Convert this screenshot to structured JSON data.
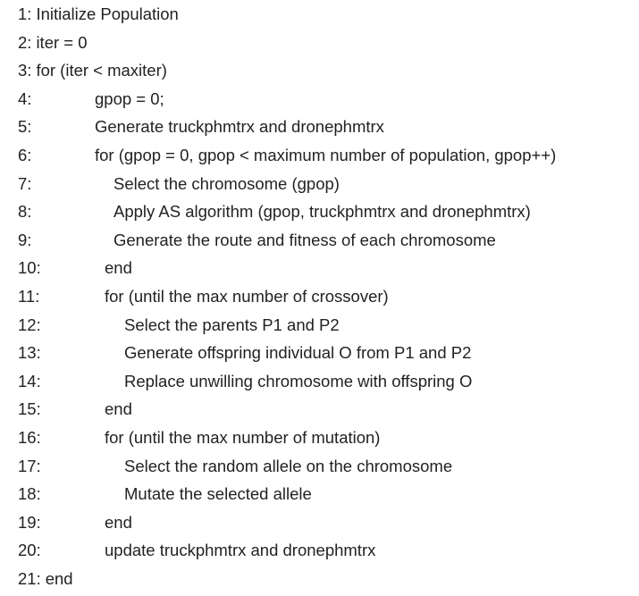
{
  "algorithm": {
    "lines": [
      {
        "num": "1:",
        "text": "Initialize Population",
        "inline": true
      },
      {
        "num": "2:",
        "text": "iter = 0",
        "inline": true
      },
      {
        "num": "3:",
        "text": "for (iter < maxiter)",
        "inline": true
      },
      {
        "num": "4:",
        "text": "gpop = 0;",
        "indent": 1
      },
      {
        "num": "5:",
        "text": "Generate truckphmtrx and dronephmtrx",
        "indent": 1
      },
      {
        "num": "6:",
        "text": "for (gpop = 0, gpop < maximum number of population, gpop++)",
        "indent": 1
      },
      {
        "num": "7:",
        "text": "Select the chromosome (gpop)",
        "indent": 3
      },
      {
        "num": "8:",
        "text": "Apply AS algorithm (gpop, truckphmtrx and dronephmtrx)",
        "indent": 3
      },
      {
        "num": "9:",
        "text": "Generate the route and fitness of each chromosome",
        "indent": 3
      },
      {
        "num": "10:",
        "text": "end",
        "indent": 2
      },
      {
        "num": "11:",
        "text": "for (until the max number of crossover)",
        "indent": 2
      },
      {
        "num": "12:",
        "text": "Select the parents P1 and P2",
        "indent": 4
      },
      {
        "num": "13:",
        "text": "Generate offspring individual O from P1 and P2",
        "indent": 4
      },
      {
        "num": "14:",
        "text": "Replace unwilling chromosome with offspring O",
        "indent": 4
      },
      {
        "num": "15:",
        "text": "end",
        "indent": 2
      },
      {
        "num": "16:",
        "text": "for (until the max number of mutation)",
        "indent": 2
      },
      {
        "num": "17:",
        "text": "Select the random allele on the chromosome",
        "indent": 4
      },
      {
        "num": "18:",
        "text": "Mutate the selected allele",
        "indent": 4
      },
      {
        "num": "19:",
        "text": "end",
        "indent": 2
      },
      {
        "num": "20:",
        "text": "update truckphmtrx and dronephmtrx",
        "indent": 2
      },
      {
        "num": "21:",
        "text": "end",
        "inline": true
      }
    ]
  }
}
